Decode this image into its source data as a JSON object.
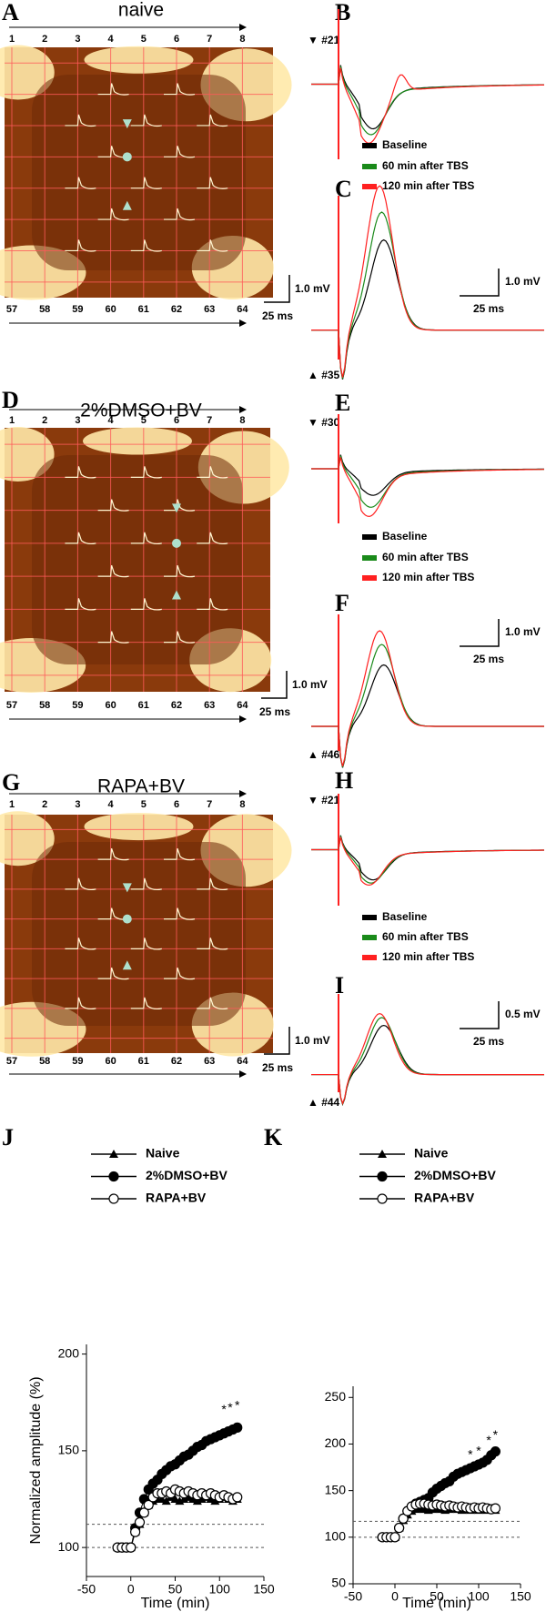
{
  "panels": {
    "A": {
      "label": "A",
      "title": "naive",
      "top_numbers": [
        1,
        2,
        3,
        4,
        5,
        6,
        7,
        8
      ],
      "bottom_numbers": [
        57,
        58,
        59,
        60,
        61,
        62,
        63,
        64
      ],
      "scale_v": "1.0 mV",
      "scale_t": "25 ms"
    },
    "B": {
      "label": "B",
      "site": "▼ #21",
      "legend": [
        "Baseline",
        "60 min after TBS",
        "120 min after TBS"
      ],
      "legend_colors": [
        "#000000",
        "#1a8a1a",
        "#ff2020"
      ]
    },
    "C": {
      "label": "C",
      "site": "▲ #35",
      "scale_v": "1.0 mV",
      "scale_t": "25 ms"
    },
    "D": {
      "label": "D",
      "title": "2%DMSO+BV",
      "top_numbers": [
        1,
        2,
        3,
        4,
        5,
        6,
        7,
        8
      ],
      "bottom_numbers": [
        57,
        58,
        59,
        60,
        61,
        62,
        63,
        64
      ],
      "scale_v": "1.0 mV",
      "scale_t": "25 ms"
    },
    "E": {
      "label": "E",
      "site": "▼ #30",
      "legend": [
        "Baseline",
        "60 min after TBS",
        "120 min after TBS"
      ],
      "legend_colors": [
        "#000000",
        "#1a8a1a",
        "#ff2020"
      ]
    },
    "F": {
      "label": "F",
      "site": "▲ #46",
      "scale_v": "1.0 mV",
      "scale_t": "25 ms"
    },
    "G": {
      "label": "G",
      "title": "RAPA+BV",
      "top_numbers": [
        1,
        2,
        3,
        4,
        5,
        6,
        7,
        8
      ],
      "bottom_numbers": [
        57,
        58,
        59,
        60,
        61,
        62,
        63,
        64
      ],
      "scale_v": "1.0 mV",
      "scale_t": "25 ms"
    },
    "H": {
      "label": "H",
      "site": "▼ #21",
      "legend": [
        "Baseline",
        "60 min after TBS",
        "120 min after TBS"
      ],
      "legend_colors": [
        "#000000",
        "#1a8a1a",
        "#ff2020"
      ]
    },
    "I": {
      "label": "I",
      "site": "▲ #44",
      "scale_v": "0.5 mV",
      "scale_t": "25 ms"
    }
  },
  "chart_data": [
    {
      "type": "line",
      "panel_label": "J",
      "ylabel": "Normalized amplitude (%)",
      "xlabel": "Time (min)",
      "x": [
        -15,
        -10,
        -5,
        0,
        5,
        10,
        15,
        20,
        25,
        30,
        35,
        40,
        45,
        50,
        55,
        60,
        65,
        70,
        75,
        80,
        85,
        90,
        95,
        100,
        105,
        110,
        115,
        120
      ],
      "series": [
        {
          "name": "Naive",
          "marker": "triangle",
          "color": "#000000",
          "values": [
            100,
            100,
            100,
            100,
            108,
            112,
            118,
            122,
            124,
            125,
            125,
            124,
            126,
            125,
            124,
            125,
            126,
            125,
            124,
            125,
            126,
            125,
            124,
            125,
            126,
            125,
            124,
            125
          ]
        },
        {
          "name": "2%DMSO+BV",
          "marker": "circle",
          "color": "#000000",
          "values": [
            100,
            100,
            100,
            100,
            110,
            118,
            125,
            130,
            133,
            135,
            138,
            140,
            142,
            143,
            145,
            147,
            148,
            150,
            152,
            153,
            155,
            156,
            157,
            158,
            159,
            160,
            161,
            162
          ]
        },
        {
          "name": "RAPA+BV",
          "marker": "open-circle",
          "color": "#000000",
          "values": [
            100,
            100,
            100,
            100,
            108,
            113,
            118,
            122,
            126,
            128,
            128,
            129,
            128,
            130,
            129,
            128,
            129,
            128,
            127,
            128,
            127,
            128,
            127,
            126,
            127,
            126,
            125,
            126
          ]
        }
      ],
      "xlim": [
        -50,
        150
      ],
      "xticks": [
        -50,
        0,
        50,
        100,
        150
      ],
      "ylim": [
        85,
        205
      ],
      "yticks": [
        100,
        150,
        200
      ],
      "hlines": [
        100,
        112
      ],
      "annotations": [
        {
          "text": "*",
          "x": 105,
          "y": 171
        },
        {
          "text": "*",
          "x": 112,
          "y": 172
        },
        {
          "text": "*",
          "x": 120,
          "y": 173
        }
      ]
    },
    {
      "type": "line",
      "panel_label": "K",
      "xlabel": "Time (min)",
      "x": [
        -15,
        -10,
        -5,
        0,
        5,
        10,
        15,
        20,
        25,
        30,
        35,
        40,
        45,
        50,
        55,
        60,
        65,
        70,
        75,
        80,
        85,
        90,
        95,
        100,
        105,
        110,
        115,
        120
      ],
      "series": [
        {
          "name": "Naive",
          "marker": "triangle",
          "color": "#000000",
          "values": [
            100,
            100,
            100,
            100,
            110,
            118,
            124,
            128,
            130,
            131,
            130,
            129,
            130,
            131,
            130,
            129,
            130,
            131,
            130,
            129,
            130,
            129,
            130,
            129,
            130,
            129,
            130,
            129
          ]
        },
        {
          "name": "2%DMSO+BV",
          "marker": "circle",
          "color": "#000000",
          "values": [
            100,
            100,
            100,
            100,
            110,
            120,
            128,
            133,
            136,
            138,
            140,
            142,
            148,
            152,
            155,
            158,
            160,
            165,
            168,
            170,
            172,
            174,
            176,
            178,
            180,
            183,
            188,
            192
          ]
        },
        {
          "name": "RAPA+BV",
          "marker": "open-circle",
          "color": "#000000",
          "values": [
            100,
            100,
            100,
            100,
            110,
            120,
            128,
            133,
            135,
            136,
            136,
            135,
            134,
            135,
            134,
            133,
            134,
            133,
            132,
            133,
            132,
            131,
            132,
            131,
            132,
            131,
            130,
            131
          ]
        }
      ],
      "xlim": [
        -50,
        150
      ],
      "xticks": [
        -50,
        0,
        50,
        100,
        150
      ],
      "ylim": [
        50,
        262
      ],
      "yticks": [
        50,
        100,
        150,
        200,
        250
      ],
      "hlines": [
        100,
        117
      ],
      "annotations": [
        {
          "text": "*",
          "x": 90,
          "y": 188
        },
        {
          "text": "*",
          "x": 100,
          "y": 192
        },
        {
          "text": "*",
          "x": 112,
          "y": 203
        },
        {
          "text": "*",
          "x": 120,
          "y": 209
        }
      ]
    }
  ]
}
